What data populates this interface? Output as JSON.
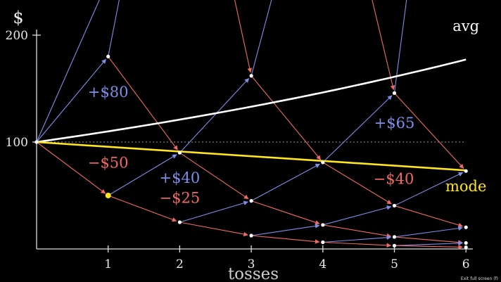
{
  "chart_data": {
    "type": "line",
    "ylabel": "$",
    "xlabel": "tosses",
    "x_ticks": [
      1,
      2,
      3,
      4,
      5,
      6
    ],
    "y_ticks": [
      100,
      200
    ],
    "xlim": [
      0,
      6
    ],
    "ylim": [
      0,
      200
    ],
    "reference_line": {
      "y": 100,
      "style": "dotted"
    },
    "colors": {
      "up": "#7f8fe8",
      "down": "#f06a63",
      "avg": "#ffffff",
      "mode": "#ffe51f"
    },
    "series": [
      {
        "name": "avg",
        "x": [
          0,
          1,
          2,
          3,
          4,
          5,
          6
        ],
        "y": [
          100,
          110,
          121,
          133.1,
          146.4,
          161.1,
          177.2
        ]
      },
      {
        "name": "mode",
        "x": [
          0,
          6
        ],
        "y": [
          100,
          73.5
        ]
      }
    ],
    "nodes": [
      {
        "x": 0,
        "y": 100
      },
      {
        "x": 1,
        "y": 180
      },
      {
        "x": 1,
        "y": 50,
        "highlight": true
      },
      {
        "x": 2,
        "y": 90
      },
      {
        "x": 2,
        "y": 25
      },
      {
        "x": 3,
        "y": 162
      },
      {
        "x": 3,
        "y": 45
      },
      {
        "x": 3,
        "y": 12.5
      },
      {
        "x": 4,
        "y": 81
      },
      {
        "x": 4,
        "y": 22.5
      },
      {
        "x": 4,
        "y": 6.25
      },
      {
        "x": 5,
        "y": 145.8
      },
      {
        "x": 5,
        "y": 40.5
      },
      {
        "x": 5,
        "y": 11.25
      },
      {
        "x": 5,
        "y": 3.1
      },
      {
        "x": 6,
        "y": 72.9
      },
      {
        "x": 6,
        "y": 20.25
      },
      {
        "x": 6,
        "y": 5.6
      },
      {
        "x": 6,
        "y": 1.6
      }
    ],
    "edges": [
      {
        "from": [
          0,
          100
        ],
        "to": [
          1,
          180
        ],
        "dir": "up"
      },
      {
        "from": [
          0,
          100
        ],
        "to": [
          1,
          50
        ],
        "dir": "down"
      },
      {
        "from": [
          0,
          100
        ],
        "to": [
          1.32,
          300
        ],
        "dir": "up"
      },
      {
        "from": [
          1,
          180
        ],
        "to": [
          2,
          90
        ],
        "dir": "down"
      },
      {
        "from": [
          1,
          180
        ],
        "to": [
          1.35,
          300
        ],
        "dir": "up"
      },
      {
        "from": [
          1,
          50
        ],
        "to": [
          2,
          90
        ],
        "dir": "up"
      },
      {
        "from": [
          1,
          50
        ],
        "to": [
          2,
          25
        ],
        "dir": "down"
      },
      {
        "from": [
          2.55,
          300
        ],
        "to": [
          3,
          162
        ],
        "dir": "down"
      },
      {
        "from": [
          2,
          90
        ],
        "to": [
          3,
          162
        ],
        "dir": "up"
      },
      {
        "from": [
          2,
          90
        ],
        "to": [
          3,
          45
        ],
        "dir": "down"
      },
      {
        "from": [
          2,
          25
        ],
        "to": [
          3,
          45
        ],
        "dir": "up"
      },
      {
        "from": [
          2,
          25
        ],
        "to": [
          3,
          12.5
        ],
        "dir": "down"
      },
      {
        "from": [
          3,
          162
        ],
        "to": [
          3.55,
          300
        ],
        "dir": "up"
      },
      {
        "from": [
          3,
          162
        ],
        "to": [
          4,
          81
        ],
        "dir": "down"
      },
      {
        "from": [
          3,
          45
        ],
        "to": [
          4,
          81
        ],
        "dir": "up"
      },
      {
        "from": [
          3,
          45
        ],
        "to": [
          4,
          22.5
        ],
        "dir": "down"
      },
      {
        "from": [
          3,
          12.5
        ],
        "to": [
          4,
          22.5
        ],
        "dir": "up"
      },
      {
        "from": [
          3,
          12.5
        ],
        "to": [
          4,
          6.25
        ],
        "dir": "down"
      },
      {
        "from": [
          4.45,
          300
        ],
        "to": [
          5,
          145.8
        ],
        "dir": "down"
      },
      {
        "from": [
          4,
          81
        ],
        "to": [
          5,
          145.8
        ],
        "dir": "up"
      },
      {
        "from": [
          4,
          81
        ],
        "to": [
          5,
          40.5
        ],
        "dir": "down"
      },
      {
        "from": [
          4,
          22.5
        ],
        "to": [
          5,
          40.5
        ],
        "dir": "up"
      },
      {
        "from": [
          4,
          22.5
        ],
        "to": [
          5,
          11.25
        ],
        "dir": "down"
      },
      {
        "from": [
          4,
          6.25
        ],
        "to": [
          5,
          11.25
        ],
        "dir": "up"
      },
      {
        "from": [
          4,
          6.25
        ],
        "to": [
          5,
          3.1
        ],
        "dir": "down"
      },
      {
        "from": [
          5,
          145.8
        ],
        "to": [
          6,
          72.9
        ],
        "dir": "down"
      },
      {
        "from": [
          5,
          145.8
        ],
        "to": [
          5.3,
          300
        ],
        "dir": "up"
      },
      {
        "from": [
          5,
          40.5
        ],
        "to": [
          6,
          72.9
        ],
        "dir": "up"
      },
      {
        "from": [
          5,
          40.5
        ],
        "to": [
          6,
          20.25
        ],
        "dir": "down"
      },
      {
        "from": [
          5,
          11.25
        ],
        "to": [
          6,
          20.25
        ],
        "dir": "up"
      },
      {
        "from": [
          5,
          11.25
        ],
        "to": [
          6,
          5.6
        ],
        "dir": "down"
      },
      {
        "from": [
          5,
          3.1
        ],
        "to": [
          6,
          5.6
        ],
        "dir": "up"
      },
      {
        "from": [
          5,
          3.1
        ],
        "to": [
          6,
          1.6
        ],
        "dir": "down"
      }
    ],
    "annotations": [
      {
        "text": "+$80",
        "dir": "up",
        "x": 1.0,
        "y": 142
      },
      {
        "text": "−$50",
        "dir": "down",
        "x": 1.0,
        "y": 76
      },
      {
        "text": "+$40",
        "dir": "up",
        "x": 2.0,
        "y": 62
      },
      {
        "text": "−$25",
        "dir": "down",
        "x": 2.0,
        "y": 43
      },
      {
        "text": "+$65",
        "dir": "up",
        "x": 5.0,
        "y": 113
      },
      {
        "text": "−$40",
        "dir": "down",
        "x": 4.99,
        "y": 61
      }
    ],
    "series_labels": [
      {
        "series": "avg",
        "text": "avg",
        "x": 6.0,
        "y": 204
      },
      {
        "series": "mode",
        "text": "mode",
        "x": 6.0,
        "y": 54
      }
    ]
  },
  "exit_fullscreen_label": "Exit full screen (f)"
}
